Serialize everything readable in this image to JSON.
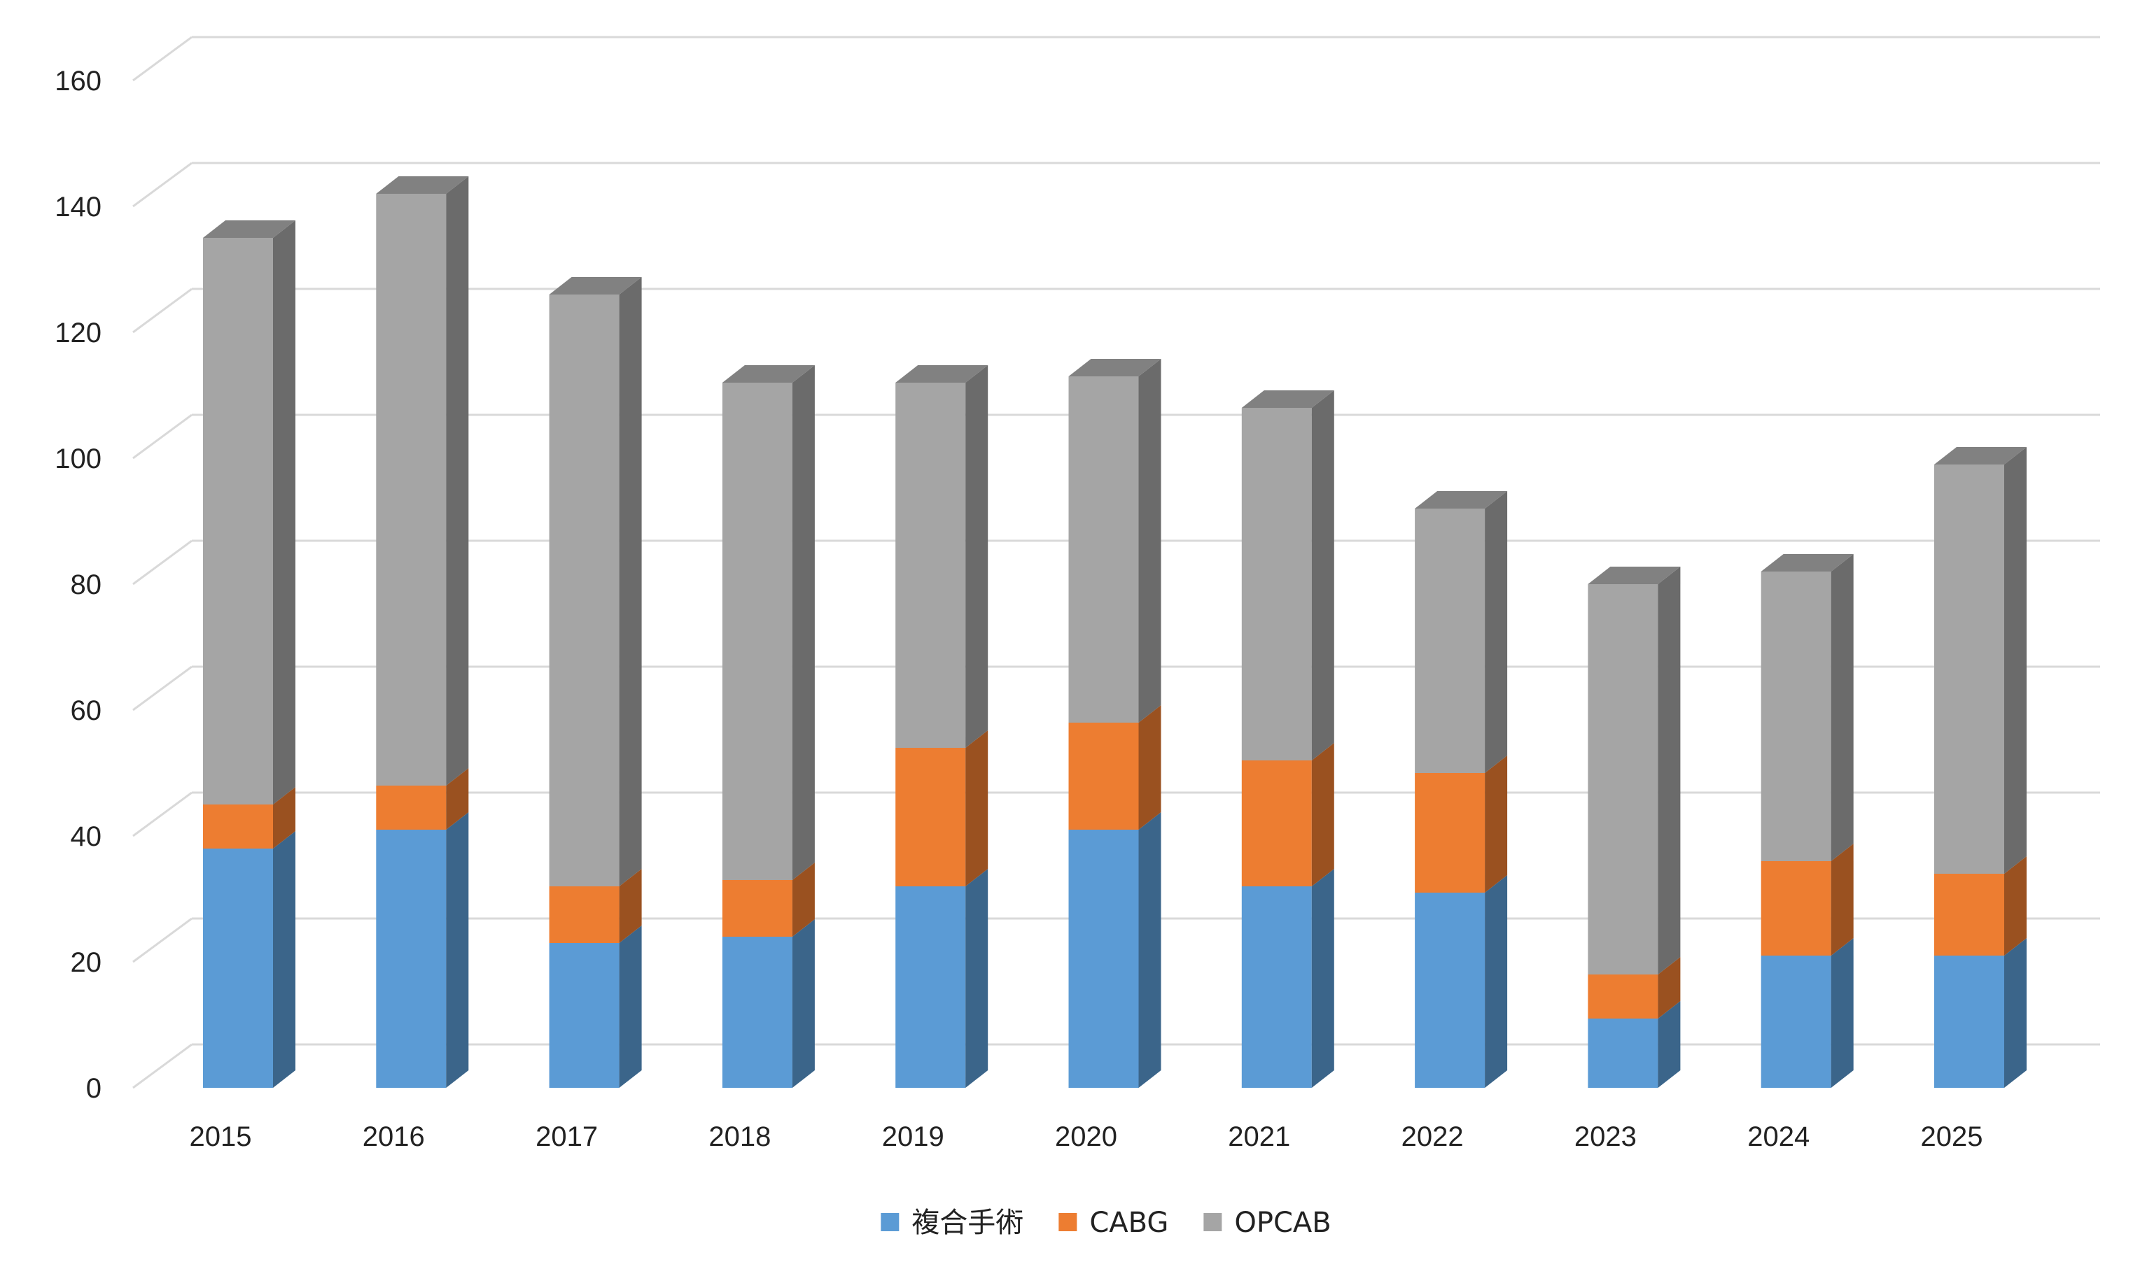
{
  "chart_data": {
    "type": "bar",
    "stacked": true,
    "style": "3d-column",
    "categories": [
      "2015",
      "2016",
      "2017",
      "2018",
      "2019",
      "2020",
      "2021",
      "2022",
      "2023",
      "2024",
      "2025"
    ],
    "series": [
      {
        "name": "複合手術",
        "color": "#5b9bd5",
        "values": [
          38,
          41,
          23,
          24,
          32,
          41,
          32,
          31,
          11,
          21,
          21
        ]
      },
      {
        "name": "CABG",
        "color": "#ed7d31",
        "values": [
          7,
          7,
          9,
          9,
          22,
          17,
          20,
          19,
          7,
          15,
          13
        ]
      },
      {
        "name": "OPCAB",
        "color": "#a5a5a5",
        "values": [
          90,
          94,
          94,
          79,
          58,
          55,
          56,
          42,
          62,
          46,
          65
        ]
      }
    ],
    "title": "",
    "xlabel": "",
    "ylabel": "",
    "ylim": [
      0,
      160
    ],
    "yticks": [
      "0",
      "20",
      "40",
      "60",
      "80",
      "100",
      "120",
      "140",
      "160"
    ],
    "grid": true,
    "legend": "bottom-center"
  }
}
